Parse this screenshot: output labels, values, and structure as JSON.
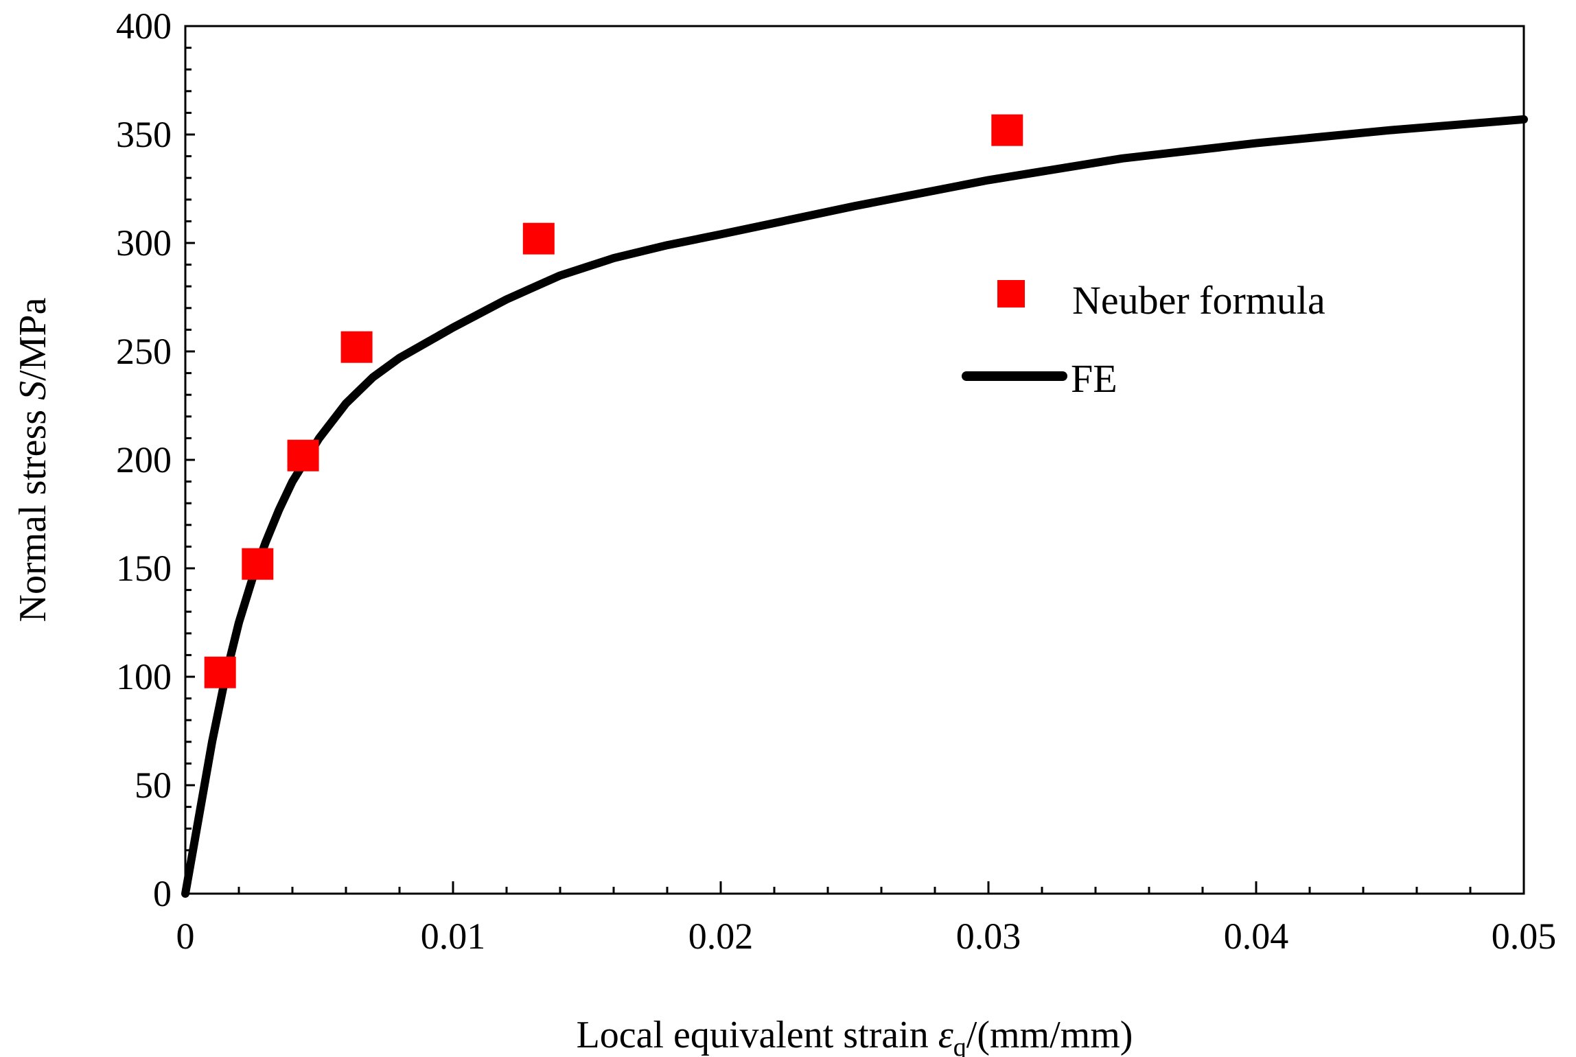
{
  "chart_data": {
    "type": "scatter",
    "title": "",
    "xlabel": {
      "prefix": "Local equivalent strain ",
      "symbol": "ε",
      "subscript": "q",
      "suffix": "/(mm/mm)"
    },
    "ylabel": {
      "prefix": "Normal stress ",
      "symbol": "S",
      "suffix": "/MPa"
    },
    "xlim": [
      0,
      0.05
    ],
    "ylim": [
      0,
      400
    ],
    "x_ticks": [
      0,
      0.01,
      0.02,
      0.03,
      0.04,
      0.05
    ],
    "x_tick_labels": [
      "0",
      "0.01",
      "0.02",
      "0.03",
      "0.04",
      "0.05"
    ],
    "y_ticks": [
      0,
      50,
      100,
      150,
      200,
      250,
      300,
      350,
      400
    ],
    "y_tick_labels": [
      "0",
      "50",
      "100",
      "150",
      "200",
      "250",
      "300",
      "350",
      "400"
    ],
    "x_minor_step": 0.002,
    "y_minor_step": 10,
    "grid": false,
    "legend_position": "right",
    "series": [
      {
        "name": "Neuber formula",
        "type": "scatter",
        "marker": "square",
        "color": "#ff0000",
        "x": [
          0.0013,
          0.0027,
          0.0044,
          0.0064,
          0.0132,
          0.0307
        ],
        "y": [
          102,
          152,
          202,
          252,
          302,
          352
        ]
      },
      {
        "name": "FE",
        "type": "line",
        "color": "#000000",
        "x": [
          0,
          0.0005,
          0.001,
          0.0015,
          0.002,
          0.0025,
          0.003,
          0.0035,
          0.004,
          0.005,
          0.006,
          0.007,
          0.008,
          0.009,
          0.01,
          0.012,
          0.014,
          0.016,
          0.018,
          0.02,
          0.025,
          0.03,
          0.035,
          0.04,
          0.045,
          0.05
        ],
        "y": [
          0,
          35,
          70,
          100,
          125,
          145,
          162,
          177,
          190,
          210,
          226,
          238,
          247,
          254,
          261,
          274,
          285,
          293,
          299,
          304,
          317,
          329,
          339,
          346,
          352,
          357
        ]
      }
    ]
  }
}
